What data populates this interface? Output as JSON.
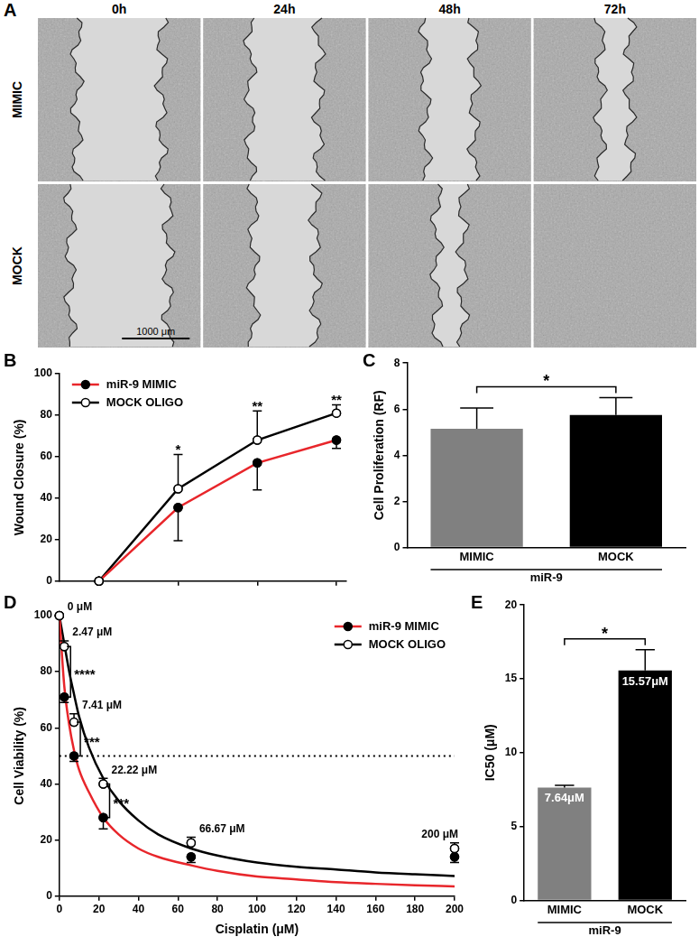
{
  "panel_labels": [
    "A",
    "B",
    "C",
    "D",
    "E"
  ],
  "images": {
    "columns": [
      "0h",
      "24h",
      "48h",
      "72h"
    ],
    "rows": [
      "MIMIC",
      "MOCK"
    ],
    "scale_bar": "1000 μm"
  },
  "chart_data": [
    {
      "type": "line",
      "ylabel": "Wound Closure (%)",
      "x": [
        0,
        24,
        48,
        72
      ],
      "xlim": [
        -12,
        75
      ],
      "xticks": [
        0,
        24,
        48,
        72
      ],
      "ylim": [
        0,
        100
      ],
      "yticks": [
        0,
        20,
        40,
        60,
        80,
        100
      ],
      "tick_labels": "y",
      "grid": false,
      "legend": "top-left",
      "series": [
        {
          "name": "miR-9 MIMIC",
          "color": "#e8262b",
          "marker": "filled",
          "values": [
            0,
            35.5,
            57,
            68
          ],
          "errors": [
            0,
            16,
            13,
            4
          ]
        },
        {
          "name": "MOCK OLIGO",
          "color": "#000000",
          "marker": "open",
          "values": [
            0,
            44.5,
            68,
            81
          ],
          "errors": [
            0,
            16.5,
            14,
            4
          ]
        }
      ],
      "annotations": [
        {
          "x": 24,
          "text": "*"
        },
        {
          "x": 48,
          "text": "**"
        },
        {
          "x": 72,
          "text": "**"
        }
      ]
    },
    {
      "type": "bar",
      "ylabel": "Cell Proliferation (RF)",
      "xlabel": "miR-9",
      "categories": [
        "MIMIC",
        "MOCK"
      ],
      "values": [
        5.15,
        5.75
      ],
      "errors": [
        0.9,
        0.75
      ],
      "colors": [
        "#808080",
        "#000000"
      ],
      "ylim": [
        0,
        8
      ],
      "yticks": [
        0,
        2,
        4,
        6,
        8
      ],
      "grid": false,
      "annotations": [
        {
          "text": "*",
          "between": [
            "MIMIC",
            "MOCK"
          ]
        }
      ]
    },
    {
      "type": "line",
      "xlabel": "Cisplatin (μM)",
      "ylabel": "Cell Viability (%)",
      "x": [
        0,
        2.47,
        7.41,
        22.22,
        66.67,
        200
      ],
      "xlim": [
        0,
        200
      ],
      "xticks": [
        0,
        20,
        40,
        60,
        80,
        100,
        120,
        140,
        160,
        180,
        200
      ],
      "ylim": [
        0,
        100
      ],
      "yticks": [
        0,
        20,
        40,
        60,
        80,
        100
      ],
      "grid": false,
      "legend": "top-right",
      "reference_line": 50,
      "series": [
        {
          "name": "miR-9 MIMIC",
          "color": "#e8262b",
          "marker": "filled",
          "values": [
            100,
            71,
            50,
            28,
            14,
            14
          ],
          "errors": [
            0,
            2,
            2,
            4,
            2,
            2
          ],
          "fit": {
            "x": [
              0,
              2.47,
              5,
              7.41,
              10,
              15,
              22.22,
              30,
              40,
              50,
              66.67,
              80,
              100,
              120,
              140,
              160,
              180,
              200
            ],
            "values": [
              100,
              75,
              61,
              52,
              45,
              37,
              28,
              22,
              17,
              14,
              11,
              9,
              7,
              6,
              5,
              4.4,
              3.9,
              3.5
            ]
          }
        },
        {
          "name": "MOCK OLIGO",
          "color": "#000000",
          "marker": "open",
          "values": [
            100,
            89,
            62,
            40,
            19,
            17
          ],
          "errors": [
            0,
            2,
            3,
            2,
            2,
            2
          ],
          "fit": {
            "x": [
              0,
              2.47,
              5,
              7.41,
              10,
              15,
              22.22,
              30,
              40,
              50,
              66.67,
              80,
              100,
              120,
              140,
              160,
              180,
              200
            ],
            "values": [
              100,
              90,
              80,
              72,
              64,
              53,
              42,
              34,
              27,
              22,
              17,
              14.5,
              12,
              10.5,
              9.5,
              8.5,
              7.8,
              7.2
            ]
          }
        }
      ],
      "dose_labels": [
        {
          "x": 0,
          "text": "0 μM"
        },
        {
          "x": 2.47,
          "text": "2.47 μM"
        },
        {
          "x": 7.41,
          "text": "7.41 μM"
        },
        {
          "x": 22.22,
          "text": "22.22 μM"
        },
        {
          "x": 66.67,
          "text": "66.67 μM"
        },
        {
          "x": 200,
          "text": "200 μM"
        }
      ],
      "annotations": [
        {
          "x": 2.47,
          "text": "****",
          "between": [
            "miR-9 MIMIC",
            "MOCK OLIGO"
          ]
        },
        {
          "x": 7.41,
          "text": "***",
          "between": [
            "miR-9 MIMIC",
            "MOCK OLIGO"
          ]
        },
        {
          "x": 22.22,
          "text": "***",
          "between": [
            "miR-9 MIMIC",
            "MOCK OLIGO"
          ]
        }
      ]
    },
    {
      "type": "bar",
      "ylabel": "IC50 (μM)",
      "xlabel": "miR-9",
      "categories": [
        "MIMIC",
        "MOCK"
      ],
      "values": [
        7.64,
        15.57
      ],
      "errors": [
        0.15,
        1.4
      ],
      "value_labels": [
        "7.64μM",
        "15.57μM"
      ],
      "data_labels": true,
      "colors": [
        "#808080",
        "#000000"
      ],
      "ylim": [
        0,
        20
      ],
      "yticks": [
        0,
        5,
        10,
        15,
        20
      ],
      "grid": false,
      "annotations": [
        {
          "text": "*",
          "between": [
            "MIMIC",
            "MOCK"
          ]
        }
      ]
    }
  ]
}
